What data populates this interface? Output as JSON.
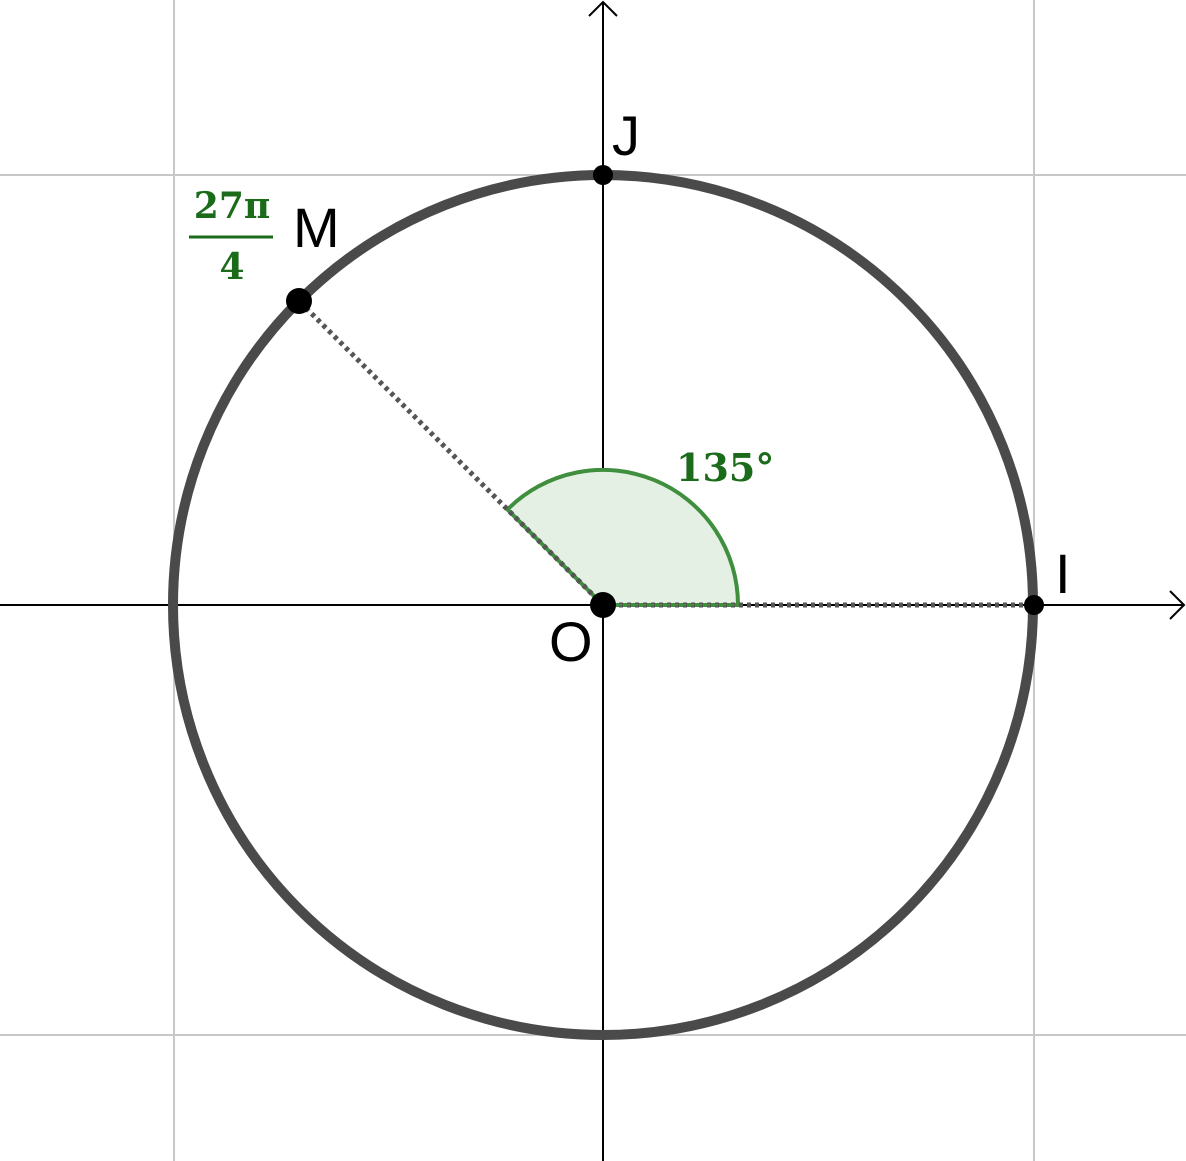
{
  "points": {
    "O": "O",
    "I": "I",
    "J": "J",
    "M": "M"
  },
  "angle": {
    "label": "135°",
    "degrees": 135,
    "fraction": {
      "numerator": "27π",
      "denominator": "4"
    }
  },
  "colors": {
    "circle": "#4a4a4a",
    "grid": "#c8c8c8",
    "axis": "#000000",
    "angle_stroke": "#3f8f3f",
    "angle_fill": "#e4f0e4",
    "math_text": "#1b6b1b"
  }
}
